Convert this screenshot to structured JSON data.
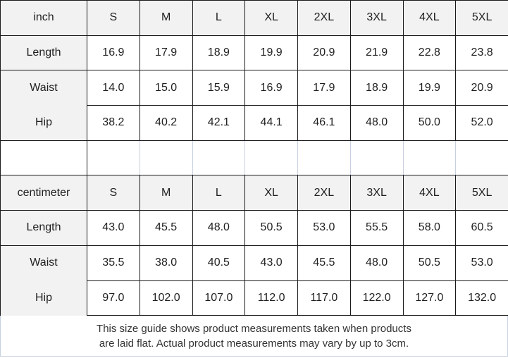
{
  "table": {
    "sizes": [
      "S",
      "M",
      "L",
      "XL",
      "2XL",
      "3XL",
      "4XL",
      "5XL"
    ],
    "sections": [
      {
        "unit_label": "inch",
        "rows": [
          {
            "label": "Length",
            "values": [
              "16.9",
              "17.9",
              "18.9",
              "19.9",
              "20.9",
              "21.9",
              "22.8",
              "23.8"
            ]
          },
          {
            "label": "Waist",
            "values": [
              "14.0",
              "15.0",
              "15.9",
              "16.9",
              "17.9",
              "18.9",
              "19.9",
              "20.9"
            ]
          },
          {
            "label": "Hip",
            "values": [
              "38.2",
              "40.2",
              "42.1",
              "44.1",
              "46.1",
              "48.0",
              "50.0",
              "52.0"
            ]
          }
        ]
      },
      {
        "unit_label": "centimeter",
        "rows": [
          {
            "label": "Length",
            "values": [
              "43.0",
              "45.5",
              "48.0",
              "50.5",
              "53.0",
              "55.5",
              "58.0",
              "60.5"
            ]
          },
          {
            "label": "Waist",
            "values": [
              "35.5",
              "38.0",
              "40.5",
              "43.0",
              "45.5",
              "48.0",
              "50.5",
              "53.0"
            ]
          },
          {
            "label": "Hip",
            "values": [
              "97.0",
              "102.0",
              "107.0",
              "112.0",
              "117.0",
              "122.0",
              "127.0",
              "132.0"
            ]
          }
        ]
      }
    ],
    "footer_note": {
      "line1": "This size guide shows product measurements taken when products",
      "line2": "are laid flat. Actual product measurements may vary by up to 3cm."
    }
  },
  "colors": {
    "header_bg": "#f2f2f2",
    "border_dark": "#1a1a1a",
    "border_light": "#c8d0e0",
    "cell_text": "#1f1f1f",
    "footer_text": "#333333"
  }
}
